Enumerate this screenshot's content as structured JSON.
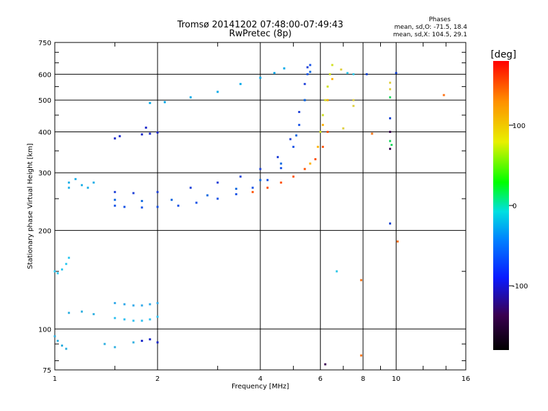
{
  "chart_data": {
    "type": "scatter",
    "title": "Tromsø 20141202 07:48:00-07:49:43",
    "subtitle": "RwPretec (8p)",
    "stats": {
      "heading": "Phases",
      "line_o": "mean, sd,O: -71.5, 18.4",
      "line_x": "mean, sd,X: 104.5, 29.1"
    },
    "xlabel": "Frequency [MHz]",
    "ylabel": "Stationary phase Virtual Height [km]",
    "x_scale": "log",
    "y_scale": "log",
    "xlim": [
      1,
      16
    ],
    "ylim": [
      75,
      750
    ],
    "x_ticks": [
      1,
      2,
      4,
      6,
      8,
      10,
      16
    ],
    "x_tick_labels": [
      "1",
      "2",
      "4",
      "6",
      "8",
      "10",
      "16"
    ],
    "y_ticks": [
      75,
      100,
      200,
      300,
      400,
      500,
      600,
      750
    ],
    "y_tick_labels": [
      "75",
      "100",
      "200",
      "300",
      "400",
      "500",
      "600",
      "750"
    ],
    "grid": true,
    "colorbar": {
      "label": "[deg]",
      "range": [
        -180,
        180
      ],
      "ticks": [
        100,
        0,
        -100
      ],
      "tick_labels": [
        "100",
        "0",
        "-100"
      ],
      "colors": [
        "#000000",
        "#3a0050",
        "#0a1aff",
        "#0080ff",
        "#00e0e0",
        "#00ff00",
        "#e8f000",
        "#ff9000",
        "#ff0000"
      ]
    },
    "series": [
      {
        "color": "#1450e6",
        "points": [
          [
            1.5,
            238
          ],
          [
            1.6,
            236
          ],
          [
            1.8,
            235
          ],
          [
            2.0,
            236
          ],
          [
            2.3,
            238
          ],
          [
            2.6,
            243
          ],
          [
            3.0,
            250
          ],
          [
            3.4,
            258
          ],
          [
            3.8,
            270
          ],
          [
            4.2,
            285
          ],
          [
            4.6,
            310
          ],
          [
            5.0,
            360
          ],
          [
            5.2,
            420
          ],
          [
            5.4,
            500
          ],
          [
            5.5,
            600
          ],
          [
            5.6,
            640
          ]
        ]
      },
      {
        "color": "#1e40d8",
        "points": [
          [
            1.5,
            262
          ],
          [
            1.7,
            260
          ],
          [
            2.0,
            262
          ],
          [
            2.5,
            270
          ],
          [
            3.0,
            280
          ],
          [
            3.5,
            292
          ],
          [
            4.0,
            308
          ],
          [
            4.5,
            335
          ],
          [
            4.9,
            380
          ],
          [
            5.2,
            460
          ],
          [
            5.4,
            560
          ],
          [
            5.5,
            630
          ]
        ]
      },
      {
        "color": "#0a66e0",
        "points": [
          [
            1.5,
            248
          ],
          [
            1.8,
            246
          ],
          [
            2.2,
            248
          ],
          [
            2.8,
            256
          ],
          [
            3.4,
            268
          ],
          [
            4.0,
            285
          ],
          [
            4.6,
            320
          ],
          [
            5.1,
            390
          ],
          [
            5.4,
            500
          ],
          [
            5.6,
            610
          ]
        ]
      },
      {
        "color": "#00a8e8",
        "points": [
          [
            1.9,
            490
          ],
          [
            2.1,
            493
          ],
          [
            2.5,
            510
          ],
          [
            3.0,
            530
          ],
          [
            3.5,
            560
          ],
          [
            4.0,
            585
          ],
          [
            4.4,
            605
          ],
          [
            4.7,
            625
          ]
        ]
      },
      {
        "color": "#ff5000",
        "points": [
          [
            3.8,
            262
          ],
          [
            4.2,
            270
          ],
          [
            4.6,
            280
          ],
          [
            5.0,
            292
          ],
          [
            5.4,
            308
          ],
          [
            5.8,
            330
          ],
          [
            6.1,
            360
          ],
          [
            6.3,
            400
          ]
        ]
      },
      {
        "color": "#ffb000",
        "points": [
          [
            5.6,
            320
          ],
          [
            5.9,
            360
          ],
          [
            6.1,
            420
          ],
          [
            6.3,
            500
          ],
          [
            6.5,
            580
          ]
        ]
      },
      {
        "color": "#d0e020",
        "points": [
          [
            6.0,
            400
          ],
          [
            6.1,
            450
          ],
          [
            6.2,
            500
          ],
          [
            6.3,
            550
          ],
          [
            6.4,
            600
          ],
          [
            6.5,
            640
          ]
        ]
      },
      {
        "color": "#30c8f0",
        "points": [
          [
            1.0,
            150
          ],
          [
            1.02,
            148
          ],
          [
            1.05,
            152
          ],
          [
            1.08,
            158
          ],
          [
            1.1,
            165
          ]
        ]
      },
      {
        "color": "#30a8e8",
        "points": [
          [
            1.5,
            120
          ],
          [
            1.6,
            119
          ],
          [
            1.7,
            118
          ],
          [
            1.8,
            118
          ],
          [
            1.9,
            119
          ],
          [
            2.0,
            120
          ]
        ]
      },
      {
        "color": "#30c0f0",
        "points": [
          [
            1.5,
            108
          ],
          [
            1.6,
            107
          ],
          [
            1.7,
            106
          ],
          [
            1.8,
            106
          ],
          [
            1.9,
            107
          ],
          [
            2.0,
            109
          ]
        ]
      },
      {
        "color": "#1020c8",
        "points": [
          [
            1.5,
            382
          ],
          [
            1.55,
            388
          ],
          [
            1.8,
            393
          ],
          [
            1.85,
            412
          ],
          [
            1.9,
            395
          ],
          [
            2.0,
            398
          ],
          [
            1.9,
            93
          ],
          [
            1.8,
            92
          ],
          [
            2.0,
            91
          ]
        ]
      },
      {
        "color": "#30b0e0",
        "points": [
          [
            1.0,
            95
          ],
          [
            1.02,
            92
          ],
          [
            1.05,
            89
          ],
          [
            1.08,
            87
          ],
          [
            1.3,
            111
          ],
          [
            1.2,
            113
          ],
          [
            1.1,
            112
          ],
          [
            1.4,
            90
          ],
          [
            1.5,
            88
          ],
          [
            1.7,
            91
          ]
        ]
      },
      {
        "color": "#20b0e8",
        "points": [
          [
            1.1,
            280
          ],
          [
            1.15,
            287
          ],
          [
            1.2,
            275
          ],
          [
            1.25,
            270
          ],
          [
            1.3,
            280
          ],
          [
            1.1,
            270
          ]
        ]
      },
      {
        "color": "#ff7010",
        "points": [
          [
            10.1,
            185
          ],
          [
            13.8,
            518
          ],
          [
            7.9,
            141
          ],
          [
            7.9,
            83
          ],
          [
            8.5,
            395
          ]
        ]
      },
      {
        "color": "#e0d040",
        "points": [
          [
            9.6,
            565
          ],
          [
            9.6,
            540
          ],
          [
            7.5,
            500
          ],
          [
            7.5,
            480
          ],
          [
            6.9,
            620
          ],
          [
            7.0,
            410
          ]
        ]
      },
      {
        "color": "#20d860",
        "points": [
          [
            9.6,
            510
          ],
          [
            9.6,
            375
          ],
          [
            9.7,
            365
          ]
        ]
      },
      {
        "color": "#1040d0",
        "points": [
          [
            9.6,
            210
          ],
          [
            9.6,
            440
          ],
          [
            8.2,
            600
          ],
          [
            10.0,
            605
          ]
        ]
      },
      {
        "color": "#3a0050",
        "points": [
          [
            9.6,
            355
          ],
          [
            9.6,
            400
          ],
          [
            6.2,
            78
          ]
        ]
      },
      {
        "color": "#30c8e8",
        "points": [
          [
            6.7,
            150
          ],
          [
            7.5,
            600
          ],
          [
            7.2,
            605
          ]
        ]
      }
    ]
  }
}
